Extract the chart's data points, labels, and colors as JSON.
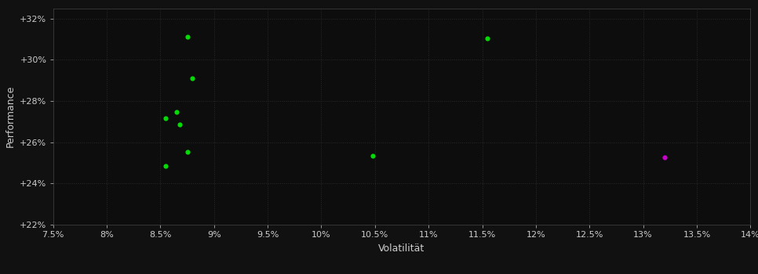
{
  "background_color": "#111111",
  "plot_bg_color": "#0d0d0d",
  "text_color": "#cccccc",
  "green_color": "#00dd00",
  "magenta_color": "#cc00cc",
  "xlabel": "Volatilität",
  "ylabel": "Performance",
  "xlim": [
    0.075,
    0.14
  ],
  "ylim": [
    0.22,
    0.325
  ],
  "xticks": [
    0.075,
    0.08,
    0.085,
    0.09,
    0.095,
    0.1,
    0.105,
    0.11,
    0.115,
    0.12,
    0.125,
    0.13,
    0.135,
    0.14
  ],
  "yticks": [
    0.22,
    0.24,
    0.26,
    0.28,
    0.3,
    0.32
  ],
  "green_points": [
    [
      0.0875,
      0.311
    ],
    [
      0.088,
      0.291
    ],
    [
      0.0865,
      0.2745
    ],
    [
      0.0855,
      0.2715
    ],
    [
      0.0868,
      0.2685
    ],
    [
      0.0875,
      0.2555
    ],
    [
      0.0855,
      0.2485
    ],
    [
      0.1155,
      0.3105
    ],
    [
      0.1048,
      0.2535
    ]
  ],
  "magenta_points": [
    [
      0.132,
      0.2525
    ]
  ],
  "marker_size": 20,
  "grid_color": "#2a2a2a",
  "grid_linestyle": ":",
  "grid_linewidth": 0.7,
  "spine_color": "#444444",
  "tick_labelsize": 8,
  "label_fontsize": 9
}
